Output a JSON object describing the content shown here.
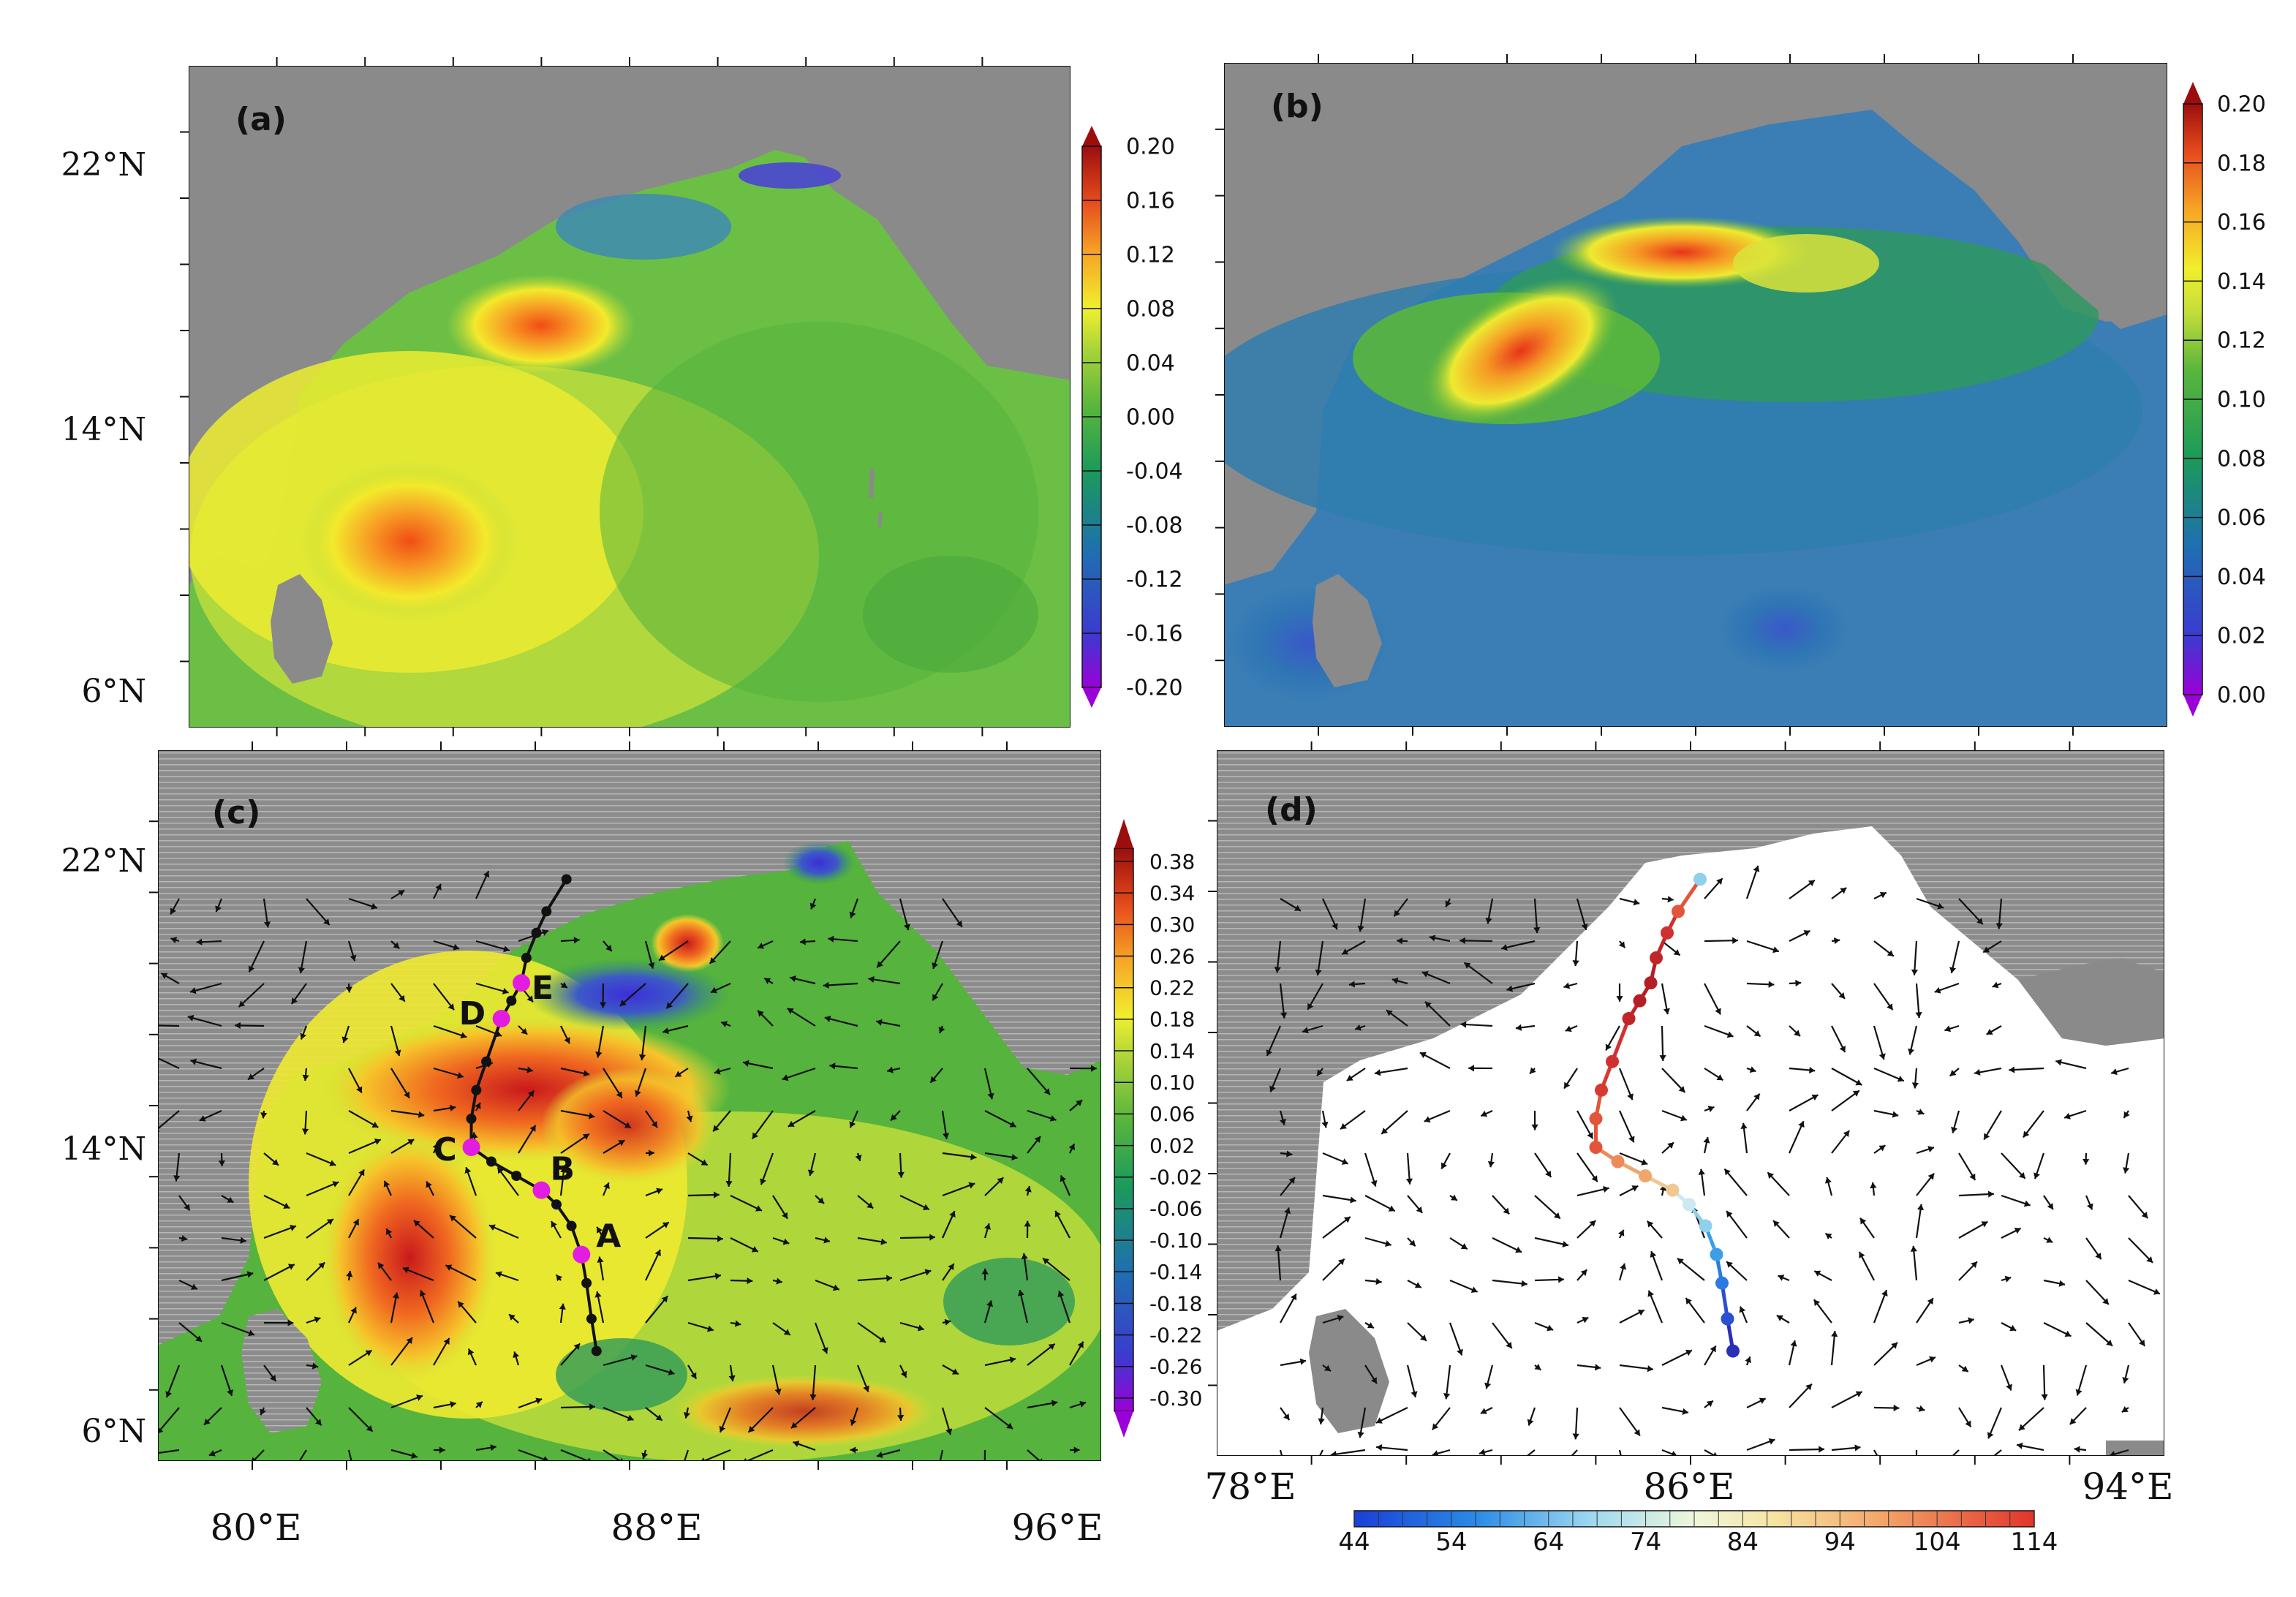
{
  "panels": {
    "a": {
      "label": "(a)",
      "lat_labels": [
        "22°N",
        "14°N",
        "6°N"
      ],
      "colorbar": {
        "ticks": [
          "0.20",
          "0.16",
          "0.12",
          "0.08",
          "0.04",
          "0.00",
          "-0.04",
          "-0.08",
          "-0.12",
          "-0.16",
          "-0.20"
        ],
        "min": -0.2,
        "max": 0.2
      }
    },
    "b": {
      "label": "(b)",
      "colorbar": {
        "ticks": [
          "0.20",
          "0.18",
          "0.16",
          "0.14",
          "0.12",
          "0.10",
          "0.08",
          "0.06",
          "0.04",
          "0.02",
          "0.00"
        ],
        "min": 0.0,
        "max": 0.2
      }
    },
    "c": {
      "label": "(c)",
      "lat_labels": [
        "22°N",
        "14°N",
        "6°N"
      ],
      "lon_labels": [
        "80°E",
        "88°E",
        "96°E"
      ],
      "colorbar": {
        "ticks": [
          "0.38",
          "0.34",
          "0.30",
          "0.26",
          "0.22",
          "0.18",
          "0.14",
          "0.10",
          "0.06",
          "0.02",
          "-0.02",
          "-0.06",
          "-0.10",
          "-0.14",
          "-0.18",
          "-0.22",
          "-0.26",
          "-0.30"
        ],
        "min": -0.3,
        "max": 0.38
      },
      "track_points": [
        {
          "name": "A",
          "lon": 86.5,
          "lat": 11.0
        },
        {
          "name": "B",
          "lon": 85.7,
          "lat": 12.8
        },
        {
          "name": "C",
          "lon": 84.3,
          "lat": 14.0
        },
        {
          "name": "D",
          "lon": 84.9,
          "lat": 17.6
        },
        {
          "name": "E",
          "lon": 85.3,
          "lat": 18.6
        }
      ]
    },
    "d": {
      "label": "(d)",
      "lon_labels": [
        "78°E",
        "86°E",
        "94°E"
      ],
      "colorbar": {
        "ticks": [
          "44",
          "54",
          "64",
          "74",
          "84",
          "94",
          "104",
          "114"
        ],
        "min": 44,
        "max": 114
      }
    }
  },
  "colors": {
    "land": "#8a8a8a",
    "track": "#111111",
    "marker": "#e21ce0"
  }
}
